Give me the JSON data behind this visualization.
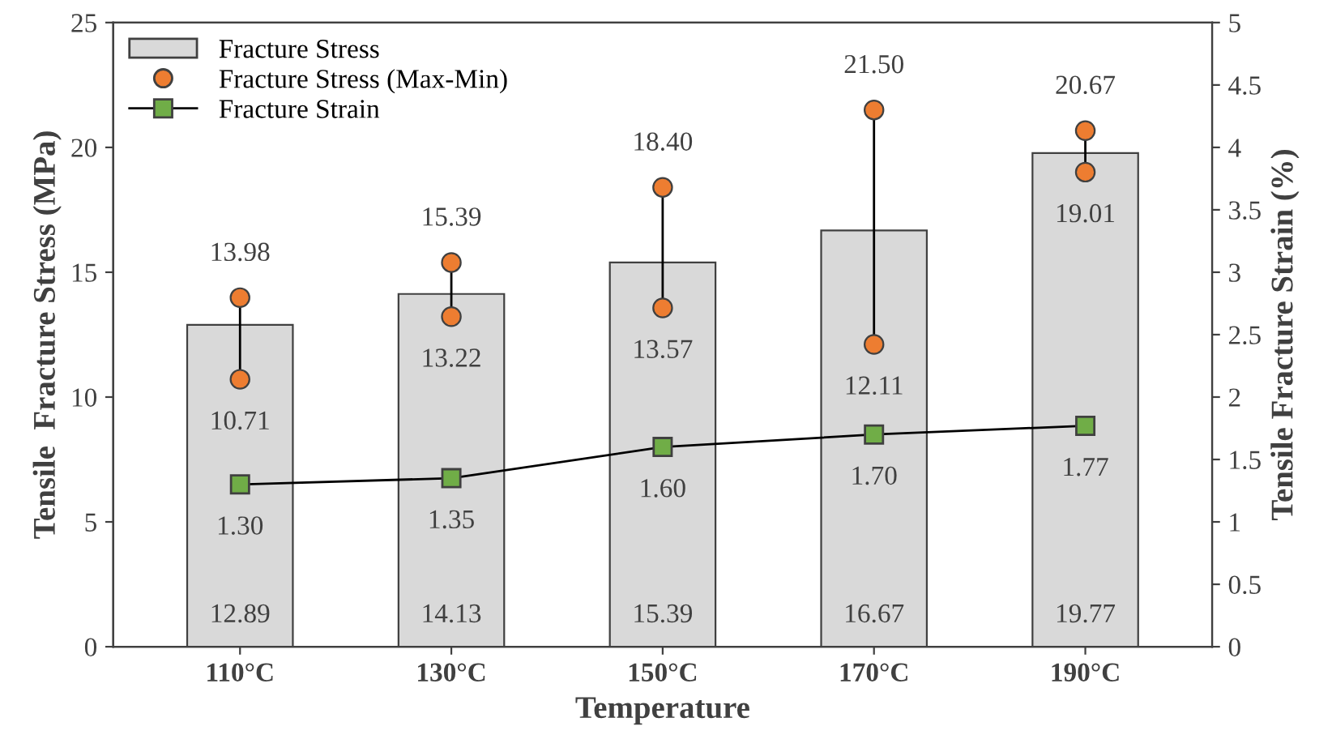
{
  "chart_data": {
    "type": "bar",
    "xlabel": "Temperature",
    "ylabel": "Tensile  Fracture Stress (MPa)",
    "y2label": "Tensile Fracture Strain (%)",
    "categories": [
      "110°C",
      "130°C",
      "150°C",
      "170°C",
      "190°C"
    ],
    "series": [
      {
        "name": "Fracture Stress",
        "color": "#d9d9d9",
        "values": [
          12.89,
          14.13,
          15.39,
          16.67,
          19.77
        ],
        "value_labels": [
          "12.89",
          "14.13",
          "15.39",
          "16.67",
          "19.77"
        ]
      },
      {
        "name": "Fracture Stress (Max-Min)",
        "type": "scatter",
        "color": "#ed7d31",
        "marker": "circle",
        "x": [
          "110°C",
          "130°C",
          "150°C",
          "170°C",
          "190°C",
          "110°C",
          "130°C",
          "150°C",
          "170°C",
          "190°C"
        ],
        "values": [
          13.98,
          15.39,
          18.4,
          21.5,
          20.67,
          10.71,
          13.22,
          13.57,
          12.11,
          19.01
        ],
        "value_labels": [
          "13.98",
          "15.39",
          "18.40",
          "21.50",
          "20.67",
          "10.71",
          "13.22",
          "13.57",
          "12.11",
          "19.01"
        ]
      },
      {
        "name": "Fracture Strain",
        "type": "line",
        "axis": "y2",
        "color": "#70ad47",
        "marker": "square",
        "values": [
          1.3,
          1.35,
          1.6,
          1.7,
          1.77
        ],
        "value_labels": [
          "1.30",
          "1.35",
          "1.60",
          "1.70",
          "1.77"
        ]
      }
    ],
    "ylim": [
      0,
      25
    ],
    "yticks": [
      0,
      5,
      10,
      15,
      20,
      25
    ],
    "y2lim": [
      0,
      5
    ],
    "y2ticks": [
      0,
      0.5,
      1,
      1.5,
      2,
      2.5,
      3,
      3.5,
      4,
      4.5,
      5
    ],
    "grid": false,
    "legend": "top left"
  }
}
